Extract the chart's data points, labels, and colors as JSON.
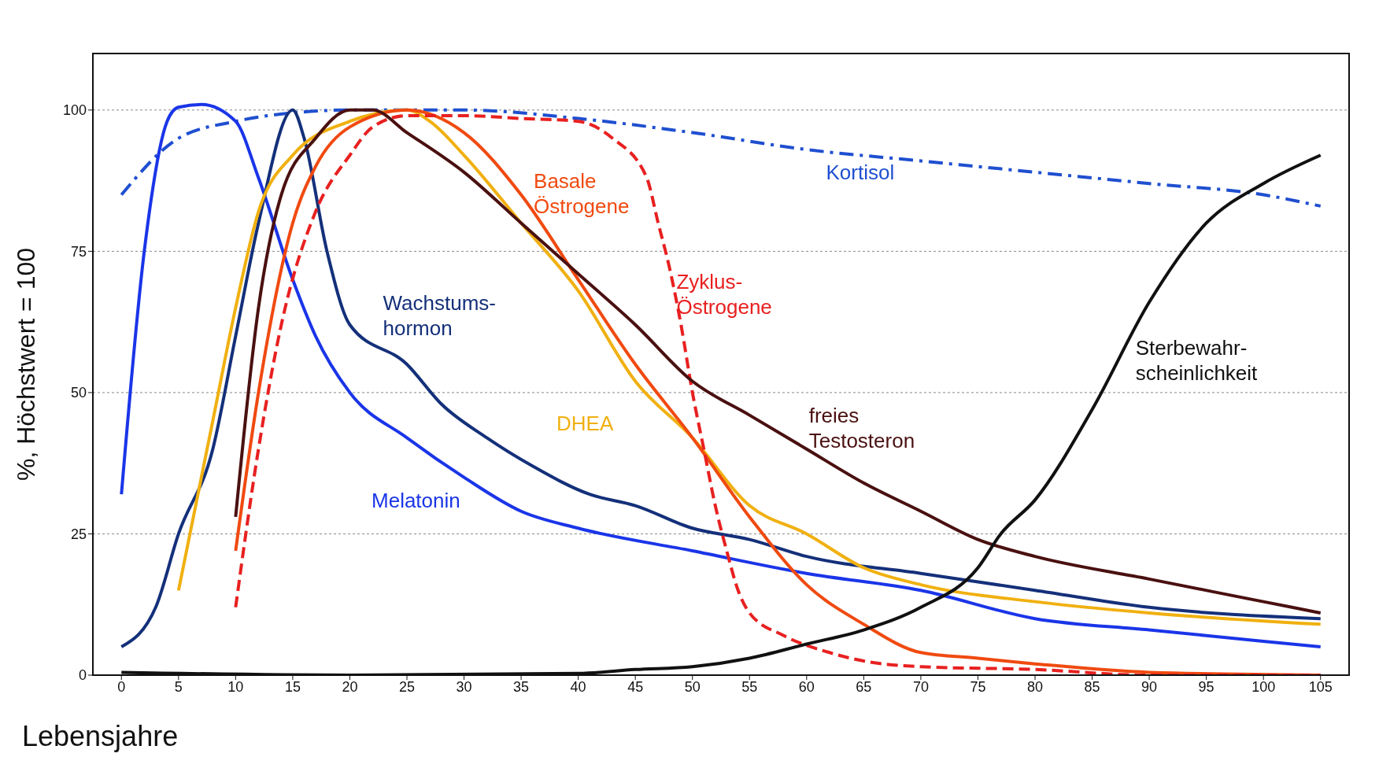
{
  "chart_data": {
    "type": "line",
    "xlabel": "Lebensjahre",
    "ylabel": "%, Höchstwert = 100",
    "xlim": [
      -2.5,
      107.5
    ],
    "xticks": [
      0,
      5,
      10,
      15,
      20,
      25,
      30,
      35,
      40,
      45,
      50,
      55,
      60,
      65,
      70,
      75,
      80,
      85,
      90,
      95,
      100,
      105
    ],
    "ylim": [
      0,
      110
    ],
    "yticks": [
      0,
      25,
      50,
      75,
      100
    ],
    "grid": "y",
    "legend": false,
    "marker": "none",
    "series": [
      {
        "name": "Kortisol",
        "color": "#1f4fd0",
        "line_style": "dashed",
        "x": [
          0,
          5,
          10,
          15,
          20,
          30,
          40,
          50,
          60,
          70,
          80,
          90,
          100,
          105
        ],
        "values": [
          85,
          95,
          98,
          99.5,
          100,
          100,
          98.5,
          96,
          93,
          91,
          89,
          87,
          85,
          83
        ]
      },
      {
        "name": "Melatonin",
        "color": "#1a35e8",
        "line_style": "solid",
        "x": [
          0,
          2,
          4,
          5,
          7,
          10,
          12,
          15,
          17,
          20,
          25,
          30,
          35,
          40,
          50,
          60,
          70,
          80,
          90,
          100,
          105
        ],
        "values": [
          32,
          75,
          98,
          100.5,
          101,
          98,
          88,
          70,
          60,
          50,
          42,
          35,
          29,
          26,
          22,
          18,
          15,
          10,
          8,
          6,
          5
        ]
      },
      {
        "name": "Wachstums-\nhormon",
        "color": "#14307a",
        "line_style": "solid",
        "x": [
          0,
          3,
          5,
          8,
          10,
          12,
          15,
          16,
          18,
          20,
          25,
          28,
          32,
          36,
          41,
          45,
          50,
          55,
          60,
          70,
          80,
          90,
          105
        ],
        "values": [
          5,
          12,
          25,
          40,
          60,
          80,
          100,
          95,
          75,
          62,
          55,
          48,
          42,
          37,
          32,
          30,
          26,
          24,
          21,
          18,
          15,
          12,
          10
        ]
      },
      {
        "name": "DHEA",
        "color": "#f0b010",
        "line_style": "solid",
        "x": [
          5,
          8,
          10,
          12,
          15,
          20,
          25,
          27,
          30,
          35,
          40,
          45,
          50,
          55,
          60,
          65,
          70,
          80,
          90,
          105
        ],
        "values": [
          15,
          45,
          65,
          82,
          92,
          98,
          100,
          98,
          92,
          80,
          68,
          52,
          42,
          30,
          25,
          19,
          16,
          13,
          11,
          9
        ]
      },
      {
        "name": "Basale\nÖstrogene",
        "color": "#f04a10",
        "line_style": "solid",
        "x": [
          10,
          12,
          15,
          17,
          20,
          25,
          30,
          35,
          40,
          45,
          50,
          55,
          60,
          65,
          70,
          75,
          80,
          90,
          105
        ],
        "values": [
          22,
          50,
          80,
          90,
          97,
          100,
          96,
          85,
          70,
          55,
          42,
          28,
          16,
          9,
          4,
          3,
          2,
          0.5,
          0
        ]
      },
      {
        "name": "Zyklus-\nÖstrogene",
        "color": "#e82020",
        "line_style": "dashed",
        "x": [
          10,
          12,
          14,
          17,
          20,
          22,
          25,
          30,
          35,
          40,
          43,
          46,
          47,
          48,
          49,
          50,
          51,
          52,
          53,
          54,
          55,
          58,
          62,
          65,
          70,
          80,
          90,
          105
        ],
        "values": [
          12,
          40,
          62,
          82,
          92,
          97,
          99,
          99,
          98.5,
          98,
          95,
          88,
          80,
          72,
          62,
          50,
          40,
          30,
          22,
          15,
          11,
          7,
          4,
          2.5,
          1.5,
          1,
          0,
          0
        ]
      },
      {
        "name": "freies\nTestosteron",
        "color": "#4a1010",
        "line_style": "solid",
        "x": [
          10,
          12,
          14,
          17,
          20,
          22,
          25,
          30,
          35,
          40,
          45,
          50,
          55,
          60,
          65,
          70,
          75,
          80,
          90,
          100,
          105
        ],
        "values": [
          28,
          65,
          85,
          95,
          100,
          100,
          96,
          89,
          80,
          71,
          62,
          52,
          46,
          40,
          34,
          29,
          24,
          21,
          17,
          13,
          11
        ]
      },
      {
        "name": "Sterbewahr-\nscheinlichkeit",
        "color": "#111111",
        "line_style": "solid",
        "x": [
          0,
          20,
          40,
          45,
          50,
          55,
          60,
          65,
          70,
          75,
          77,
          80,
          85,
          90,
          95,
          100,
          105
        ],
        "values": [
          0.5,
          0,
          0.3,
          1,
          1.5,
          3,
          5.5,
          8,
          12,
          19,
          25,
          31,
          47,
          66,
          80,
          87,
          92
        ]
      }
    ]
  }
}
